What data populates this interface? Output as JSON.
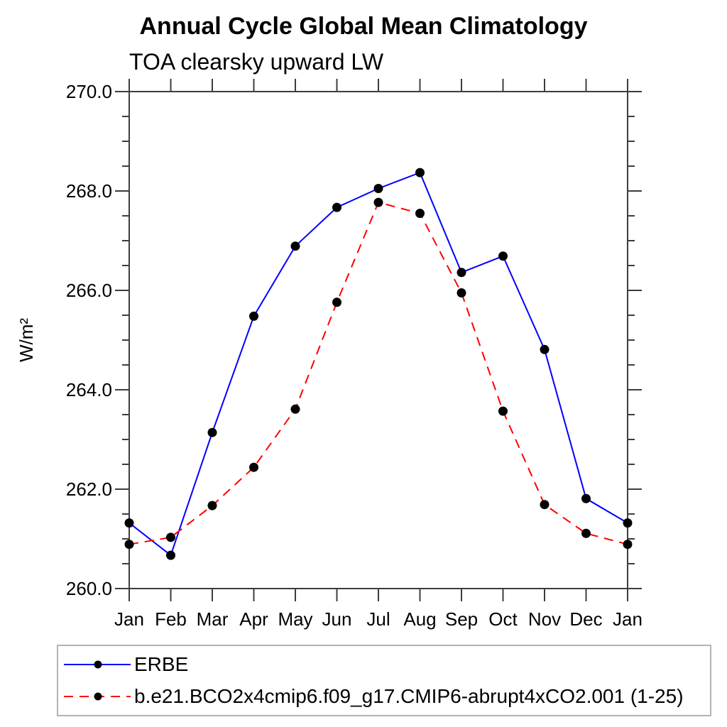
{
  "chart_data": {
    "type": "line",
    "title": "Annual Cycle Global Mean Climatology",
    "subtitle": "TOA clearsky upward LW",
    "ylabel": "W/m²",
    "xlabel": "",
    "categories": [
      "Jan",
      "Feb",
      "Mar",
      "Apr",
      "May",
      "Jun",
      "Jul",
      "Aug",
      "Sep",
      "Oct",
      "Nov",
      "Dec",
      "Jan"
    ],
    "ylim": [
      260.0,
      270.0
    ],
    "ytick_major_interval": 2.0,
    "ytick_minor_interval": 0.5,
    "ytick_labels": [
      "260.0",
      "262.0",
      "264.0",
      "266.0",
      "268.0",
      "270.0"
    ],
    "grid": "off",
    "legend_position": "below-plot-left",
    "series": [
      {
        "name": "ERBE",
        "line_color": "#0000ff",
        "line_style": "solid",
        "marker": "filled-circle",
        "marker_color": "#000000",
        "values": [
          261.32,
          260.67,
          263.14,
          265.48,
          266.89,
          267.67,
          268.05,
          268.37,
          266.36,
          266.69,
          264.81,
          261.81,
          261.32
        ]
      },
      {
        "name": "b.e21.BCO2x4cmip6.f09_g17.CMIP6-abrupt4xCO2.001 (1-25)",
        "line_color": "#ff0000",
        "line_style": "dashed",
        "marker": "filled-circle",
        "marker_color": "#000000",
        "values": [
          260.89,
          261.03,
          261.67,
          262.44,
          263.61,
          265.76,
          267.77,
          267.55,
          265.95,
          263.57,
          261.69,
          261.11,
          260.89
        ]
      }
    ],
    "colors": {
      "axis": "#3d3d3d",
      "text": "#000000",
      "background": "#ffffff"
    }
  }
}
